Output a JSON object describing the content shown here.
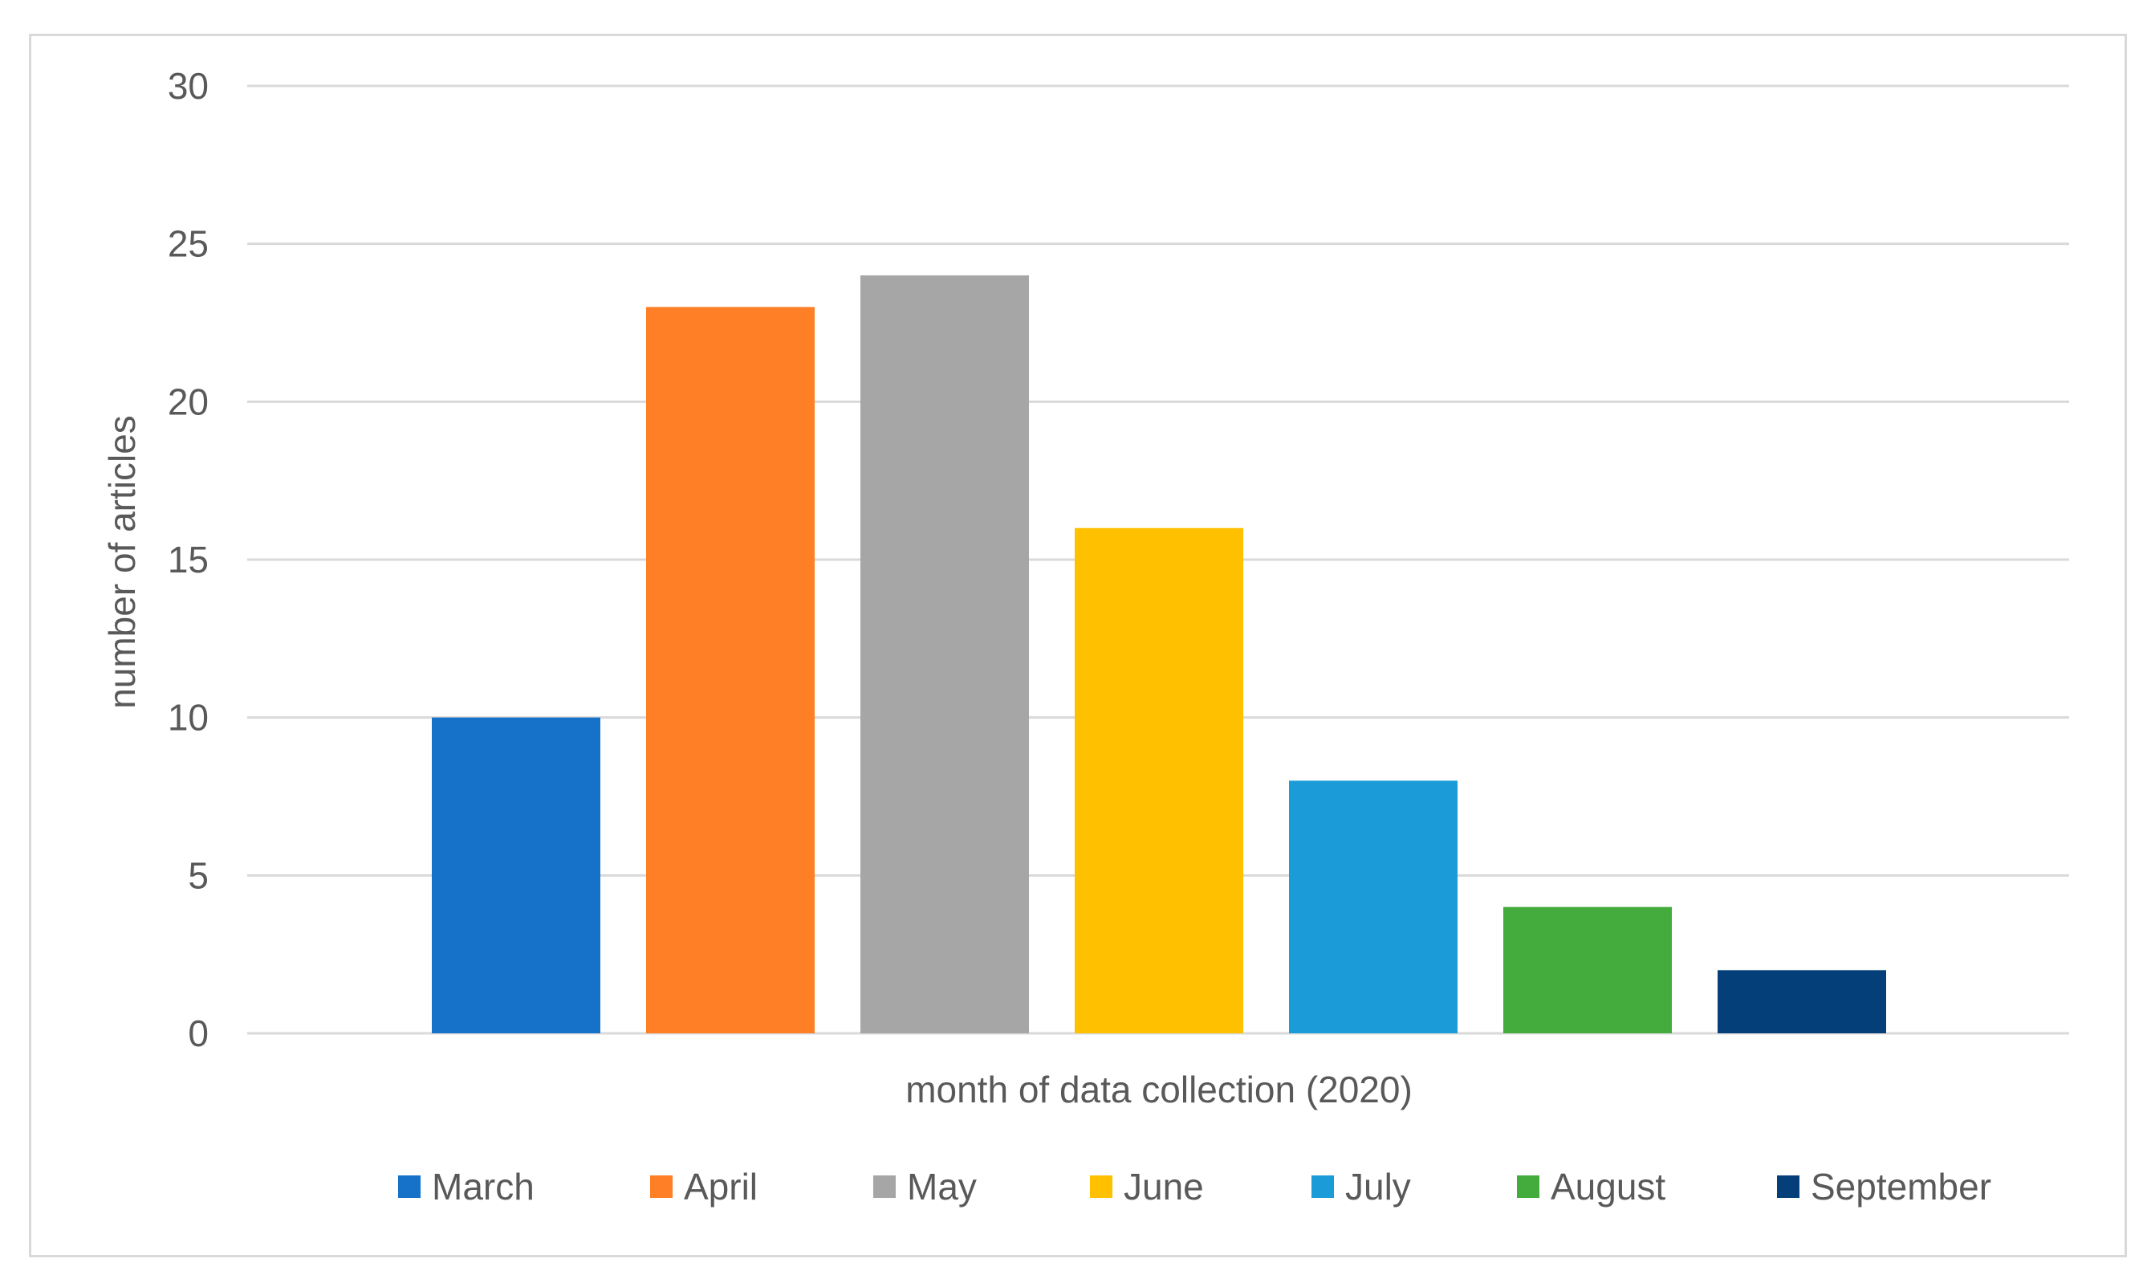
{
  "chart_data": {
    "type": "bar",
    "title": "",
    "xlabel": "month of data collection (2020)",
    "ylabel": "number of articles",
    "ylim": [
      0,
      30
    ],
    "yticks": [
      0,
      5,
      10,
      15,
      20,
      25,
      30
    ],
    "grid": true,
    "legend_position": "bottom",
    "series": [
      {
        "name": "March",
        "value": 10,
        "color": "#1671C8"
      },
      {
        "name": "April",
        "value": 23,
        "color": "#FE7F25"
      },
      {
        "name": "May",
        "value": 24,
        "color": "#A6A6A6"
      },
      {
        "name": "June",
        "value": 16,
        "color": "#FFC000"
      },
      {
        "name": "July",
        "value": 8,
        "color": "#1B9CD8"
      },
      {
        "name": "August",
        "value": 4,
        "color": "#43AC3C"
      },
      {
        "name": "September",
        "value": 2,
        "color": "#053F79"
      }
    ]
  }
}
